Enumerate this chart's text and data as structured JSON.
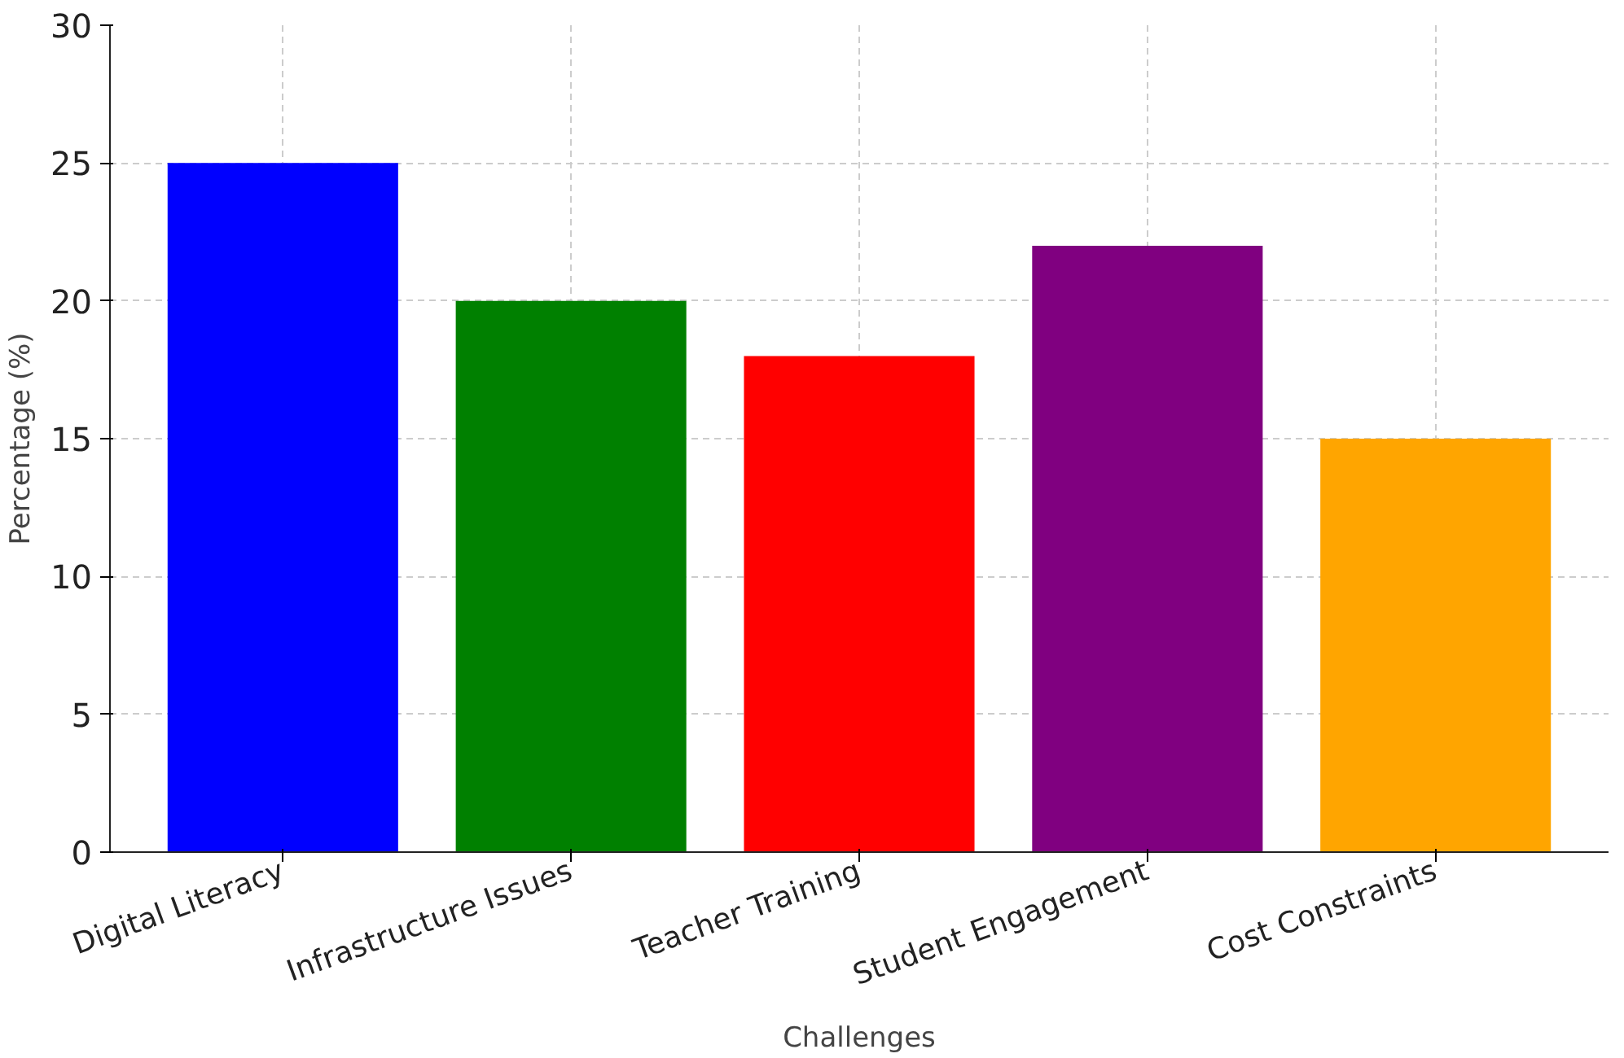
{
  "chart_data": {
    "type": "bar",
    "xlabel": "Challenges",
    "ylabel": "Percentage (%)",
    "categories": [
      "Digital Literacy",
      "Infrastructure Issues",
      "Teacher Training",
      "Student Engagement",
      "Cost Constraints"
    ],
    "values": [
      25,
      20,
      18,
      22,
      15
    ],
    "colors": [
      "#0000ff",
      "#008000",
      "#ff0000",
      "#800080",
      "#ffa500"
    ],
    "ylim": [
      0,
      30
    ],
    "yticks": [
      0,
      5,
      10,
      15,
      20,
      25,
      30
    ],
    "grid": true
  }
}
